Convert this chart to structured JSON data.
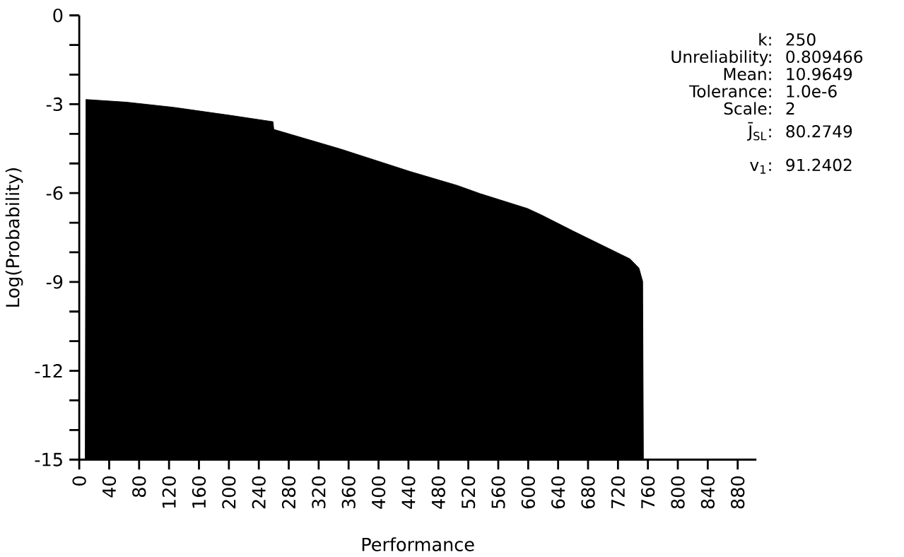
{
  "chart_data": {
    "type": "area",
    "xlabel": "Performance",
    "ylabel": "Log(Probability)",
    "color": "#000000",
    "x": [
      8,
      9,
      63,
      125,
      203,
      259,
      260,
      349,
      442,
      505,
      536,
      599,
      617,
      660,
      723,
      736,
      748,
      753,
      754
    ],
    "values": [
      -15,
      -2.84,
      -2.93,
      -3.1,
      -3.38,
      -3.59,
      -3.85,
      -4.51,
      -5.27,
      -5.74,
      -6.02,
      -6.52,
      -6.73,
      -7.28,
      -8.06,
      -8.22,
      -8.53,
      -8.98,
      -15
    ],
    "xlim": [
      0,
      905
    ],
    "ylim": [
      -15,
      0
    ],
    "xticks": [
      0,
      40,
      80,
      120,
      160,
      200,
      240,
      280,
      320,
      360,
      400,
      440,
      480,
      520,
      560,
      600,
      640,
      680,
      720,
      760,
      800,
      840,
      880
    ],
    "yticks": [
      0,
      {
        "value": -1,
        "label": null
      },
      {
        "value": -2,
        "label": null
      },
      -3,
      {
        "value": -4,
        "label": null
      },
      {
        "value": -5,
        "label": null
      },
      -6,
      {
        "value": -7,
        "label": null
      },
      {
        "value": -8,
        "label": null
      },
      -9,
      {
        "value": -10,
        "label": null
      },
      {
        "value": -11,
        "label": null
      },
      -12,
      {
        "value": -13,
        "label": null
      },
      {
        "value": -14,
        "label": null
      },
      -15
    ],
    "annotations": [
      "k:",
      "250",
      "Unreliability:",
      "0.809466",
      "Mean:",
      "10.9649",
      "Tolerance:",
      "1.0e-6",
      "Scale:",
      "2",
      "J̄$_{SL}$:",
      "80.2749",
      "v$_{1}$:",
      "91.2402"
    ]
  }
}
